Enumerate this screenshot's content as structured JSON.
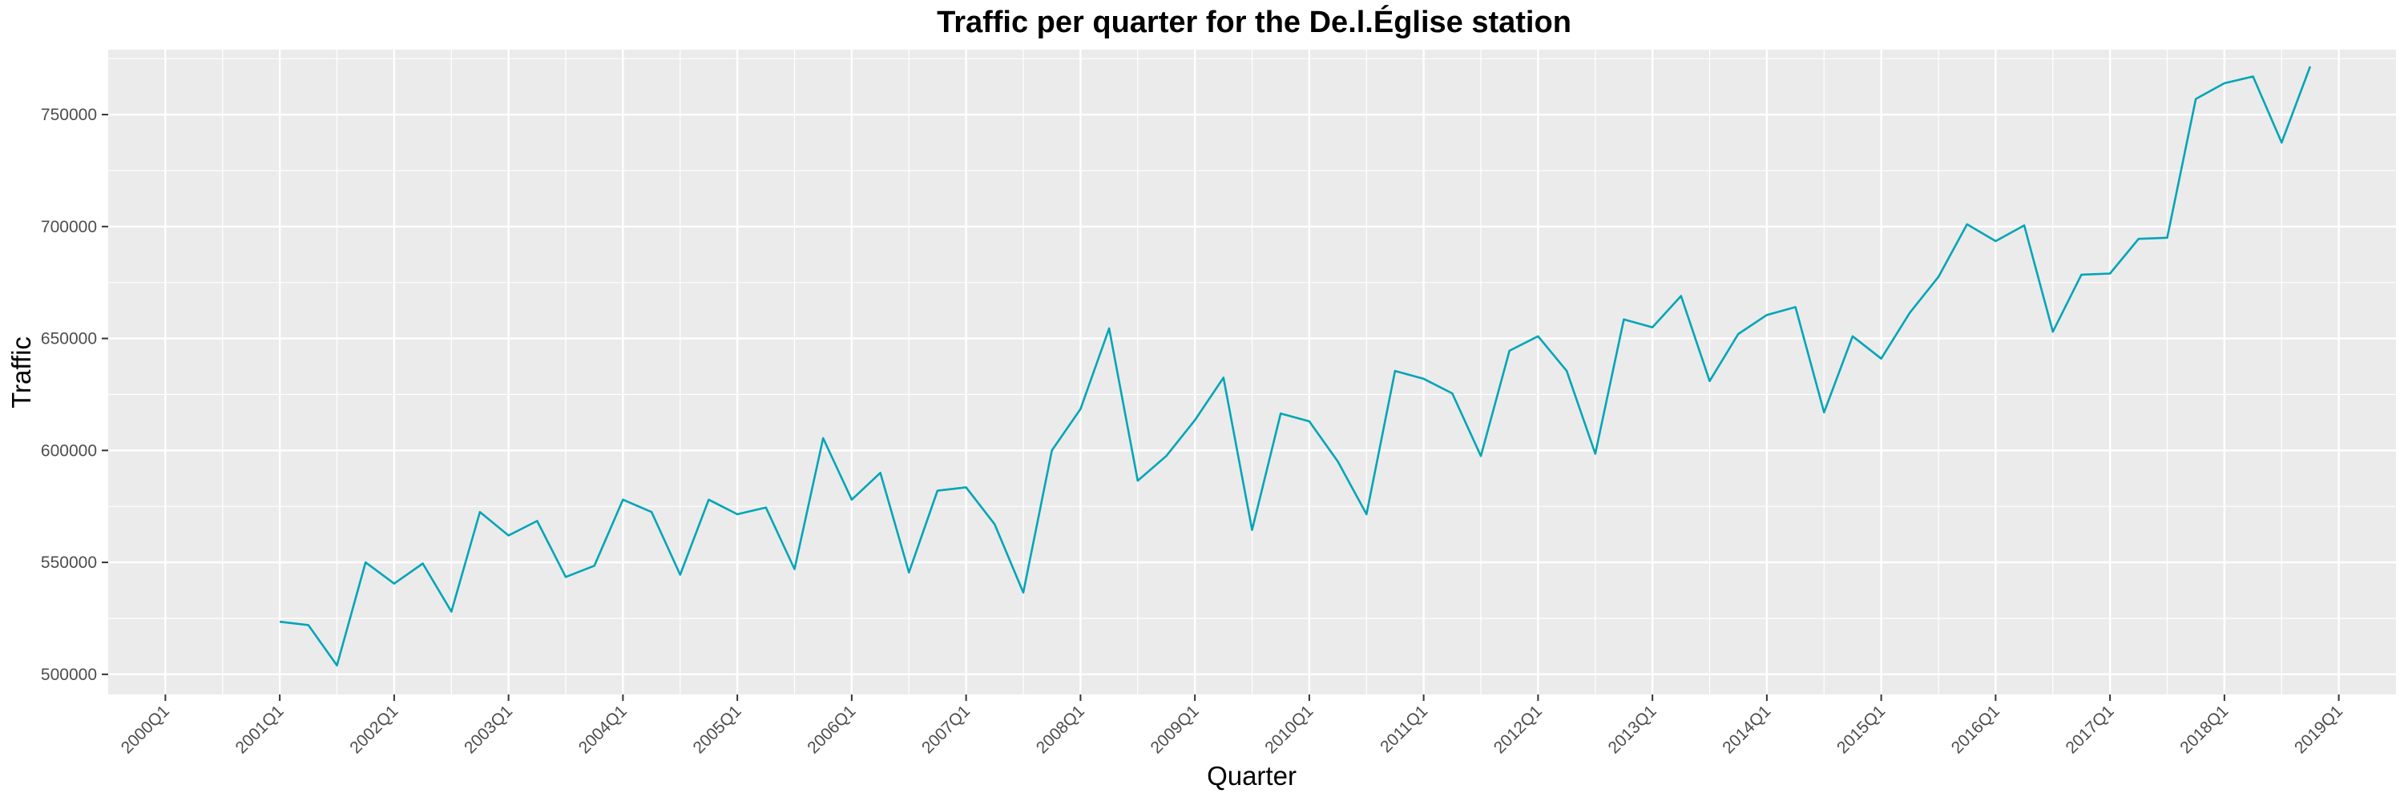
{
  "chart_data": {
    "type": "line",
    "title": "Traffic per quarter for the De.l.Église station",
    "xlabel": "Quarter",
    "ylabel": "Traffic",
    "x_tick_labels": [
      "2000Q1",
      "2001Q1",
      "2002Q1",
      "2003Q1",
      "2004Q1",
      "2005Q1",
      "2006Q1",
      "2007Q1",
      "2008Q1",
      "2009Q1",
      "2010Q1",
      "2011Q1",
      "2012Q1",
      "2013Q1",
      "2014Q1",
      "2015Q1",
      "2016Q1",
      "2017Q1",
      "2018Q1",
      "2019Q1"
    ],
    "y_ticks": [
      500000,
      550000,
      600000,
      650000,
      700000,
      750000
    ],
    "y_tick_labels": [
      "500000",
      "550000",
      "600000",
      "650000",
      "700000",
      "750000"
    ],
    "ylim": [
      491000,
      779000
    ],
    "xlim": [
      "1999Q3",
      "2019Q3"
    ],
    "grid": true,
    "line_color": "#00A5B8",
    "panel_color": "#EBEBEB",
    "grid_color": "#FFFFFF",
    "series": [
      {
        "x": [
          "2001Q1",
          "2001Q2",
          "2001Q3",
          "2001Q4",
          "2002Q1",
          "2002Q2",
          "2002Q3",
          "2002Q4",
          "2003Q1",
          "2003Q2",
          "2003Q3",
          "2003Q4",
          "2004Q1",
          "2004Q2",
          "2004Q3",
          "2004Q4",
          "2005Q1",
          "2005Q2",
          "2005Q3",
          "2005Q4",
          "2006Q1",
          "2006Q2",
          "2006Q3",
          "2006Q4",
          "2007Q1",
          "2007Q2",
          "2007Q3",
          "2007Q4",
          "2008Q1",
          "2008Q2",
          "2008Q3",
          "2008Q4",
          "2009Q1",
          "2009Q2",
          "2009Q3",
          "2009Q4",
          "2010Q1",
          "2010Q2",
          "2010Q3",
          "2010Q4",
          "2011Q1",
          "2011Q2",
          "2011Q3",
          "2011Q4",
          "2012Q1",
          "2012Q2",
          "2012Q3",
          "2012Q4",
          "2013Q1",
          "2013Q2",
          "2013Q3",
          "2013Q4",
          "2014Q1",
          "2014Q2",
          "2014Q3",
          "2014Q4",
          "2015Q1",
          "2015Q2",
          "2015Q3",
          "2015Q4",
          "2016Q1",
          "2016Q2",
          "2016Q3",
          "2016Q4",
          "2017Q1",
          "2017Q2",
          "2017Q3",
          "2017Q4",
          "2018Q1",
          "2018Q2",
          "2018Q3",
          "2018Q4"
        ],
        "values": [
          523500,
          522000,
          504000,
          550000,
          540500,
          549500,
          528000,
          572500,
          562000,
          568500,
          543500,
          548500,
          578000,
          572500,
          544500,
          578000,
          571500,
          574500,
          547000,
          605500,
          578000,
          590000,
          545500,
          582000,
          583500,
          567000,
          536500,
          600000,
          618500,
          654500,
          586500,
          597500,
          613500,
          632500,
          564500,
          616500,
          613000,
          595000,
          571500,
          635500,
          632000,
          625500,
          597500,
          644500,
          651000,
          635500,
          598500,
          658500,
          655000,
          669000,
          631000,
          652000,
          660500,
          664000,
          617000,
          651000,
          641000,
          661500,
          677500,
          701000,
          693500,
          700500,
          653000,
          678500,
          679000,
          694500,
          695000,
          757000,
          764000,
          767000,
          737500,
          771500
        ]
      }
    ]
  }
}
